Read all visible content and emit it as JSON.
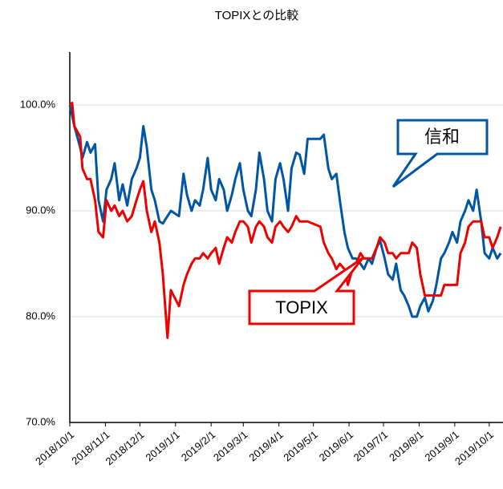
{
  "chart_data": {
    "type": "line",
    "title": "TOPIXとの比較",
    "x": [
      "2018/10/1",
      "2018/10/3",
      "2018/10/5",
      "2018/10/10",
      "2018/10/12",
      "2018/10/16",
      "2018/10/19",
      "2018/10/23",
      "2018/10/26",
      "2018/10/30",
      "2018/11/2",
      "2018/11/6",
      "2018/11/9",
      "2018/11/13",
      "2018/11/16",
      "2018/11/20",
      "2018/11/24",
      "2018/11/28",
      "2018/12/1",
      "2018/12/4",
      "2018/12/7",
      "2018/12/11",
      "2018/12/14",
      "2018/12/18",
      "2018/12/21",
      "2018/12/25",
      "2018/12/28",
      "2019/1/4",
      "2019/1/8",
      "2019/1/11",
      "2019/1/15",
      "2019/1/18",
      "2019/1/22",
      "2019/1/25",
      "2019/1/29",
      "2019/2/1",
      "2019/2/5",
      "2019/2/8",
      "2019/2/12",
      "2019/2/15",
      "2019/2/19",
      "2019/2/22",
      "2019/2/26",
      "2019/3/1",
      "2019/3/5",
      "2019/3/8",
      "2019/3/12",
      "2019/3/15",
      "2019/3/19",
      "2019/3/22",
      "2019/3/26",
      "2019/3/29",
      "2019/4/2",
      "2019/4/5",
      "2019/4/9",
      "2019/4/12",
      "2019/4/16",
      "2019/4/19",
      "2019/4/23",
      "2019/4/26",
      "2019/5/7",
      "2019/5/10",
      "2019/5/14",
      "2019/5/17",
      "2019/5/21",
      "2019/5/24",
      "2019/5/28",
      "2019/5/31",
      "2019/6/4",
      "2019/6/7",
      "2019/6/11",
      "2019/6/14",
      "2019/6/18",
      "2019/6/21",
      "2019/6/25",
      "2019/6/28",
      "2019/7/2",
      "2019/7/5",
      "2019/7/9",
      "2019/7/12",
      "2019/7/16",
      "2019/7/19",
      "2019/7/23",
      "2019/7/26",
      "2019/7/30",
      "2019/8/2",
      "2019/8/6",
      "2019/8/9",
      "2019/8/13",
      "2019/8/16",
      "2019/8/20",
      "2019/8/23",
      "2019/8/27",
      "2019/8/30",
      "2019/9/3",
      "2019/9/6",
      "2019/9/10",
      "2019/9/13",
      "2019/9/17",
      "2019/9/20",
      "2019/9/24",
      "2019/9/27",
      "2019/10/1",
      "2019/10/4",
      "2019/10/8",
      "2019/10/11"
    ],
    "series": [
      {
        "name": "信和",
        "color": "#0055a5",
        "values": [
          100,
          99,
          98,
          96,
          95,
          96.5,
          95.5,
          96.3,
          91,
          89,
          92,
          93,
          94.5,
          91,
          92.5,
          90.5,
          93,
          94,
          95,
          98,
          96,
          92,
          91,
          89,
          88.8,
          89.5,
          90,
          89.5,
          93.5,
          91.5,
          90,
          91,
          90.5,
          92,
          95,
          92,
          91,
          93,
          92,
          90,
          91.5,
          93,
          94.5,
          92,
          90,
          89.5,
          92,
          95.5,
          93,
          90,
          89,
          93,
          94.5,
          93,
          90,
          94,
          95.5,
          95.3,
          93.5,
          96.8,
          96.8,
          97.2,
          94,
          93,
          93.5,
          91,
          88,
          86.5,
          85.5,
          85.5,
          85,
          84.5,
          85.5,
          85,
          86.5,
          87.2,
          85.5,
          84,
          83.5,
          85,
          82.5,
          82,
          81,
          80,
          80,
          81,
          81.8,
          80.5,
          81.5,
          83,
          85.5,
          86,
          87,
          88,
          87,
          89,
          90,
          91,
          90,
          92,
          89,
          86,
          85.5,
          86.5,
          85.5,
          86
        ]
      },
      {
        "name": "TOPIX",
        "color": "#ee0000",
        "values": [
          100,
          100.2,
          98,
          97,
          94,
          93,
          93,
          91,
          88,
          87.5,
          91,
          90,
          90.5,
          89.5,
          90,
          89,
          89.5,
          91,
          92,
          92.8,
          90,
          88,
          89,
          87,
          84,
          78,
          82.5,
          81,
          83,
          84,
          85,
          85.5,
          85.5,
          86,
          85.5,
          86,
          86.5,
          85,
          86.5,
          87.5,
          87,
          88,
          89,
          89,
          88.5,
          87,
          88.5,
          89,
          88.5,
          87.5,
          87,
          88.5,
          89,
          88.5,
          88,
          88.5,
          89.5,
          89,
          89,
          89,
          88.5,
          87,
          86,
          85.5,
          84.5,
          85,
          84.5,
          83,
          84.5,
          85,
          86,
          85.5,
          85.5,
          85.5,
          86.5,
          87.5,
          87,
          86,
          86,
          85.5,
          86,
          86,
          86,
          87,
          86.5,
          84,
          82,
          82,
          82,
          82,
          82,
          83,
          83,
          83,
          83,
          86,
          87,
          88.5,
          89,
          89,
          89,
          87.5,
          87.5,
          86.5,
          87.5,
          88.5
        ]
      }
    ],
    "xlim": [
      "2018/10/1",
      "2019/10/13"
    ],
    "xticks": [
      "2018/10/1",
      "2018/11/1",
      "2018/12/1",
      "2019/1/1",
      "2019/2/1",
      "2019/3/1",
      "2019/4/1",
      "2019/5/1",
      "2019/6/1",
      "2019/7/1",
      "2019/8/1",
      "2019/9/1",
      "2019/10/1"
    ],
    "ylim": [
      70,
      105
    ],
    "yticks": [
      {
        "value": 70,
        "label": "70.0%"
      },
      {
        "value": 80,
        "label": "80.0%"
      },
      {
        "value": 90,
        "label": "90.0%"
      },
      {
        "value": 100,
        "label": "100.0%"
      }
    ],
    "grid": true
  }
}
